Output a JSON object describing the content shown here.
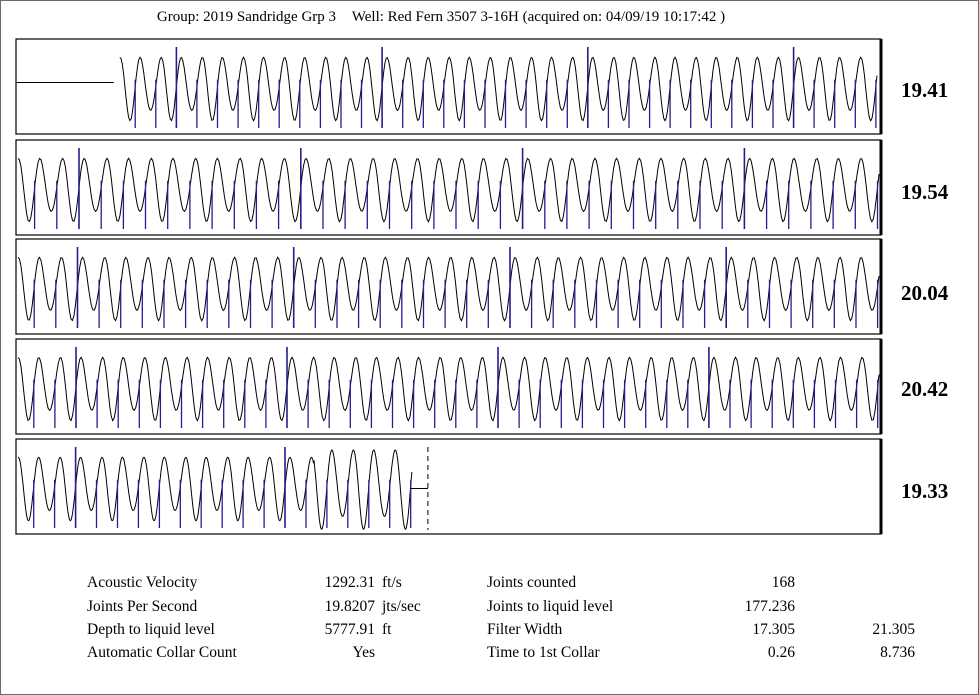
{
  "header": {
    "group": "Group: 2019 Sandridge Grp 3",
    "well": "Well: Red Fern 3507 3-16H (acquired on: 04/09/19 10:17:42 )"
  },
  "chart_data": {
    "type": "line",
    "title": "",
    "colors": {
      "signal": "#000000",
      "collar_markers": "#1f1f8f"
    },
    "traces": [
      {
        "value": "19.41",
        "cycles_per_window": 37,
        "start_flat_fraction": 0.12,
        "major_collar_every": 10
      },
      {
        "value": "19.54",
        "cycles_per_window": 39,
        "start_flat_fraction": 0,
        "major_collar_every": 10
      },
      {
        "value": "20.04",
        "cycles_per_window": 40,
        "start_flat_fraction": 0,
        "major_collar_every": 10
      },
      {
        "value": "20.42",
        "cycles_per_window": 41,
        "start_flat_fraction": 0,
        "major_collar_every": 10
      },
      {
        "value": "19.33",
        "cycles_per_window": 19,
        "start_flat_fraction": 0,
        "major_collar_every": 10,
        "ends_at_liquid_level": true
      }
    ]
  },
  "results": {
    "left": [
      {
        "label": "Acoustic Velocity",
        "value": "1292.31",
        "unit": "ft/s"
      },
      {
        "label": "Joints Per Second",
        "value": "19.8207",
        "unit": "jts/sec"
      },
      {
        "label": "Depth to liquid level",
        "value": "5777.91",
        "unit": "ft"
      },
      {
        "label": "Automatic Collar Count",
        "value": "Yes",
        "unit": ""
      }
    ],
    "right": [
      {
        "label": "Joints counted",
        "value": "168",
        "extra": ""
      },
      {
        "label": "Joints to liquid level",
        "value": "177.236",
        "extra": ""
      },
      {
        "label": "Filter Width",
        "value": "17.305",
        "extra": "21.305"
      },
      {
        "label": "Time to 1st Collar",
        "value": "0.26",
        "extra": "8.736"
      }
    ]
  }
}
